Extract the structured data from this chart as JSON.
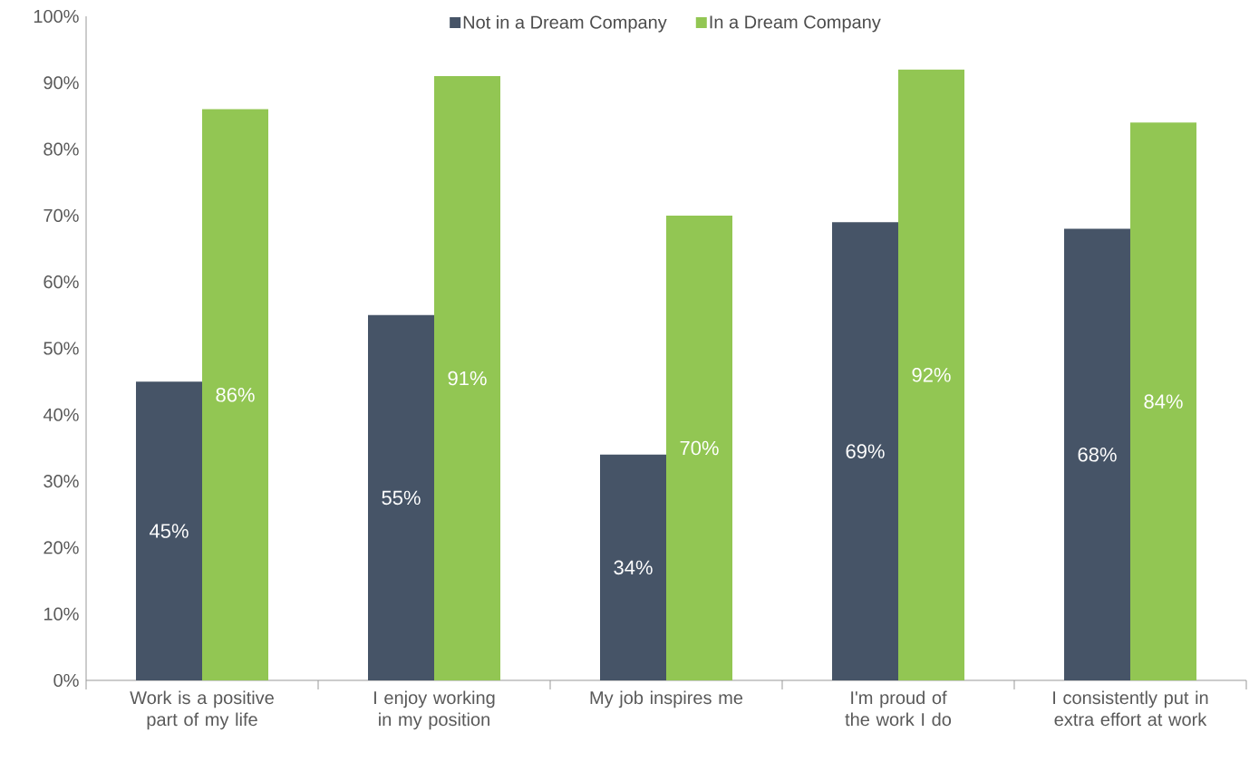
{
  "chart_data": {
    "type": "bar",
    "categories": [
      "Work is a positive part of my life",
      "I enjoy working in my position",
      "My job inspires me",
      "I'm proud of the work I do",
      "I consistently put in extra effort at work"
    ],
    "series": [
      {
        "name": "Not in a Dream Company",
        "color": "#465467",
        "values": [
          45,
          55,
          34,
          69,
          68
        ],
        "value_labels": [
          "45%",
          "55%",
          "34%",
          "69%",
          "68%"
        ]
      },
      {
        "name": "In a Dream Company",
        "color": "#92c653",
        "values": [
          86,
          91,
          70,
          92,
          84
        ],
        "value_labels": [
          "86%",
          "91%",
          "70%",
          "92%",
          "84%"
        ]
      }
    ],
    "ylim": [
      0,
      100
    ],
    "yticks": [
      {
        "value": 0,
        "label": "0%"
      },
      {
        "value": 10,
        "label": "10%"
      },
      {
        "value": 20,
        "label": "20%"
      },
      {
        "value": 30,
        "label": "30%"
      },
      {
        "value": 40,
        "label": "40%"
      },
      {
        "value": 50,
        "label": "50%"
      },
      {
        "value": 60,
        "label": "60%"
      },
      {
        "value": 70,
        "label": "70%"
      },
      {
        "value": 80,
        "label": "80%"
      },
      {
        "value": 90,
        "label": "90%"
      },
      {
        "value": 100,
        "label": "100%"
      }
    ],
    "grid": false,
    "legend": "top"
  }
}
